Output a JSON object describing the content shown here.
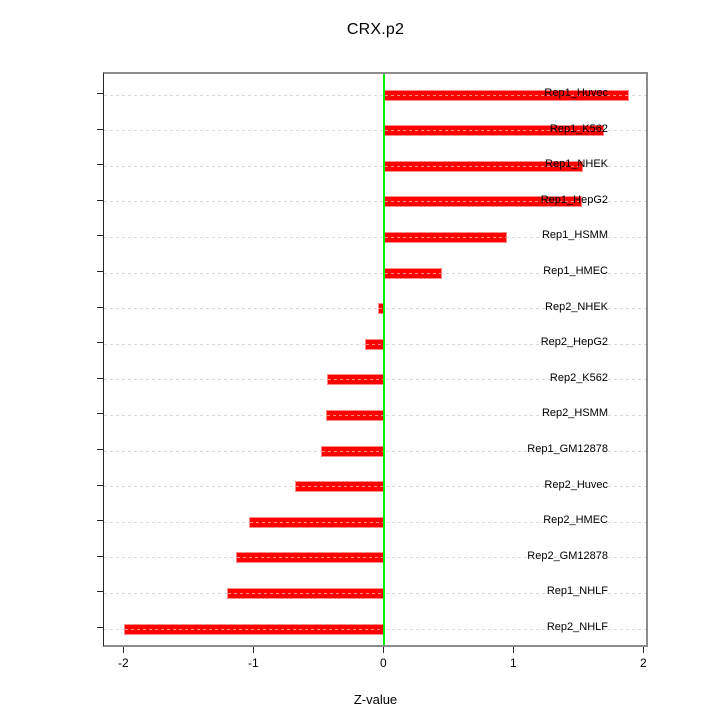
{
  "chart_data": {
    "type": "bar",
    "orientation": "horizontal",
    "title": "CRX.p2",
    "xlabel": "Z-value",
    "ylabel": "",
    "categories": [
      "Rep1_Huvec",
      "Rep1_K562",
      "Rep1_NHEK",
      "Rep1_HepG2",
      "Rep1_HSMM",
      "Rep1_HMEC",
      "Rep2_NHEK",
      "Rep2_HepG2",
      "Rep2_K562",
      "Rep2_HSMM",
      "Rep1_GM12878",
      "Rep2_Huvec",
      "Rep2_HMEC",
      "Rep2_GM12878",
      "Rep1_NHLF",
      "Rep2_NHLF"
    ],
    "values": [
      1.88,
      1.69,
      1.53,
      1.52,
      0.94,
      0.44,
      -0.05,
      -0.15,
      -0.44,
      -0.45,
      -0.49,
      -0.69,
      -1.04,
      -1.14,
      -1.21,
      -2.0
    ],
    "xticks": [
      -2,
      -1,
      0,
      1,
      2
    ],
    "xtick_labels": [
      "-2",
      "-1",
      "0",
      "1",
      "2"
    ],
    "xlim": [
      -2.16,
      2.04
    ],
    "grid": true,
    "legend": false,
    "colors": {
      "bar_fill": "#ff0000",
      "bar_border": "#ff8a8a",
      "zero_line": "#00ee00",
      "gridline": "#d8d8d8",
      "frame": "#8c8c8c",
      "axis": "#262626",
      "text": "#000000",
      "background": "#ffffff"
    }
  }
}
